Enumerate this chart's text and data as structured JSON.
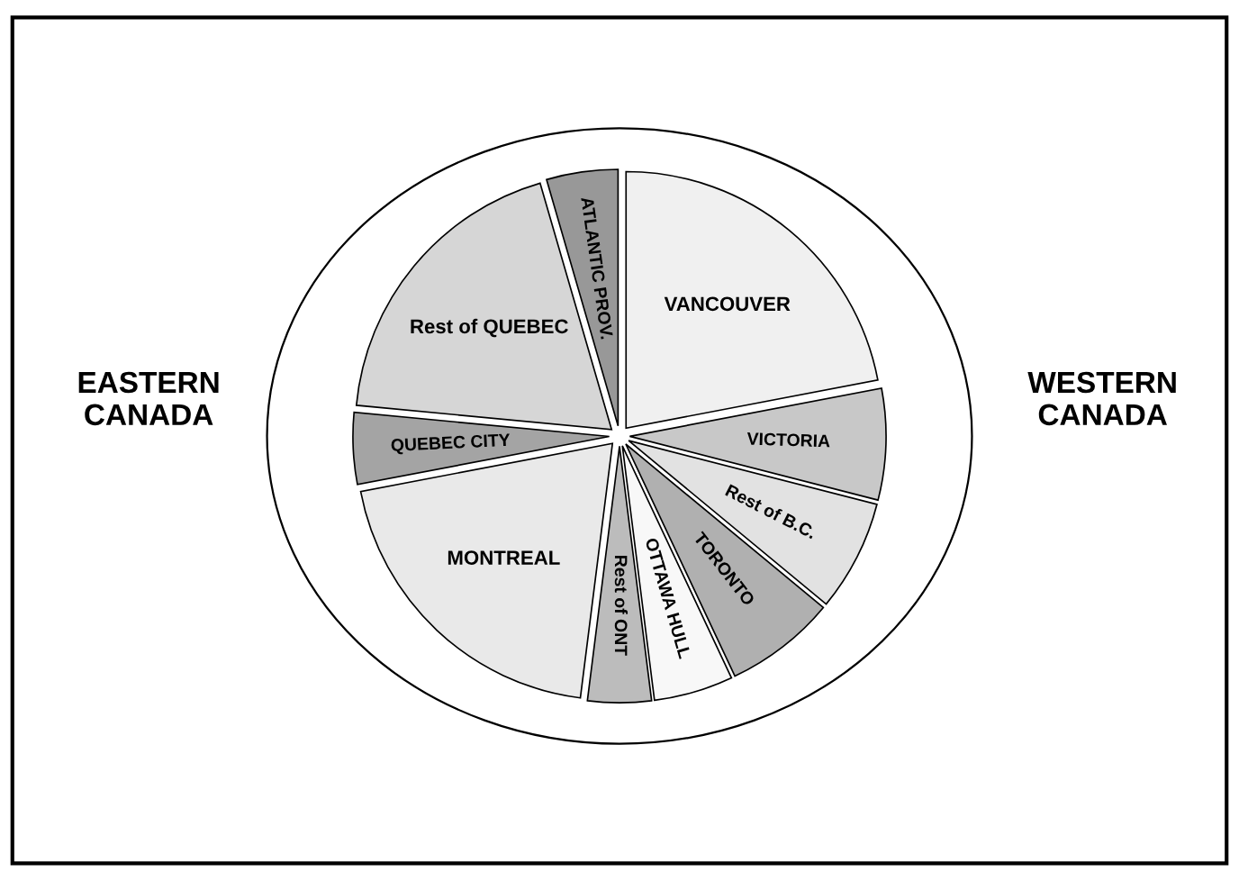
{
  "chart_data": {
    "type": "pie",
    "categories": [
      "VANCOUVER",
      "VICTORIA",
      "Rest of B.C.",
      "TORONTO",
      "OTTAWA HULL",
      "Rest of ONT",
      "MONTREAL",
      "QUEBEC CITY",
      "Rest of QUEBEC",
      "ATLANTIC PROV."
    ],
    "values": [
      22,
      7,
      7,
      7,
      5,
      4,
      20,
      4.5,
      19,
      4.5
    ],
    "colors": [
      "#f0f0f0",
      "#c8c8c8",
      "#e2e2e2",
      "#b0b0b0",
      "#f8f8f8",
      "#bcbcbc",
      "#e9e9e9",
      "#a4a4a4",
      "#d6d6d6",
      "#989898"
    ],
    "annotations": [
      "EASTERN\nCANADA",
      "WESTERN\nCANADA"
    ]
  }
}
